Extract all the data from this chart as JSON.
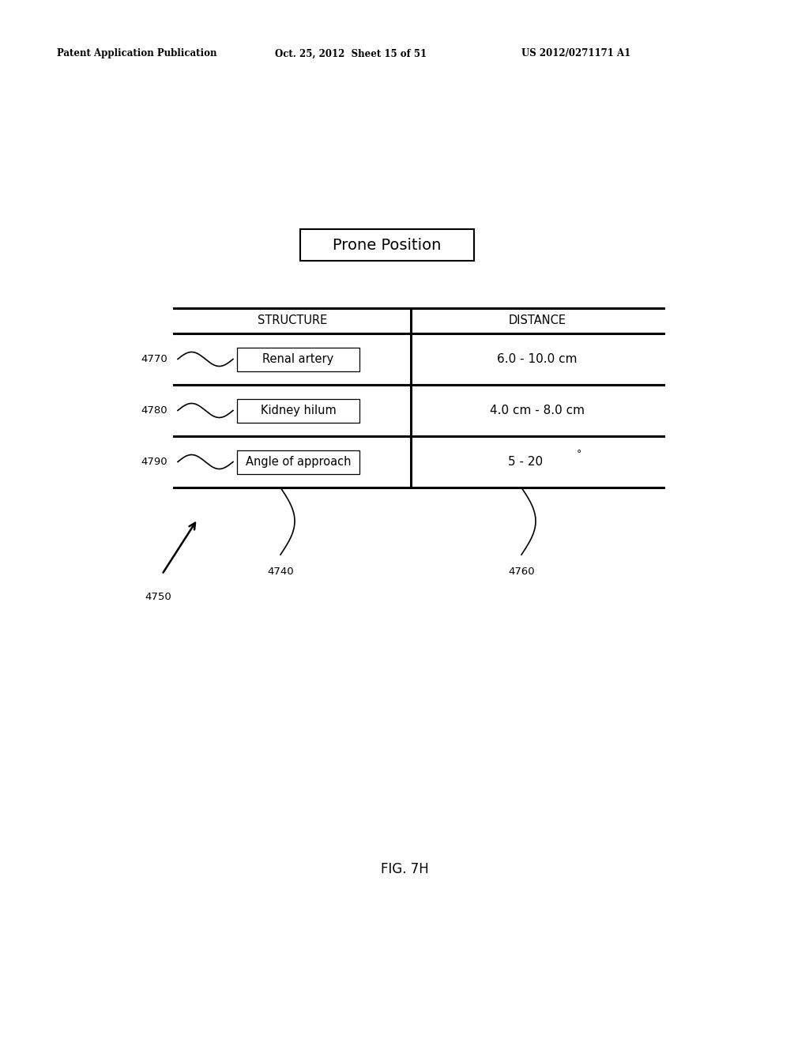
{
  "bg_color": "#ffffff",
  "header_text": "Patent Application Publication",
  "header_date": "Oct. 25, 2012  Sheet 15 of 51",
  "header_patent": "US 2012/0271171 A1",
  "title_box_text": "Prone Position",
  "col1_header": "STRUCTURE",
  "col2_header": "DISTANCE",
  "rows": [
    {
      "label": "Renal artery",
      "value": "6.0 - 10.0 cm",
      "ref": "4770"
    },
    {
      "label": "Kidney hilum",
      "value": "4.0 cm - 8.0 cm",
      "ref": "4780"
    },
    {
      "label": "Angle of approach",
      "value": "5 - 20",
      "ref": "4790",
      "has_degree": true
    }
  ],
  "arrow_ref": "4750",
  "ref_4740": "4740",
  "ref_4760": "4760",
  "figure_label": "FIG. 7H"
}
